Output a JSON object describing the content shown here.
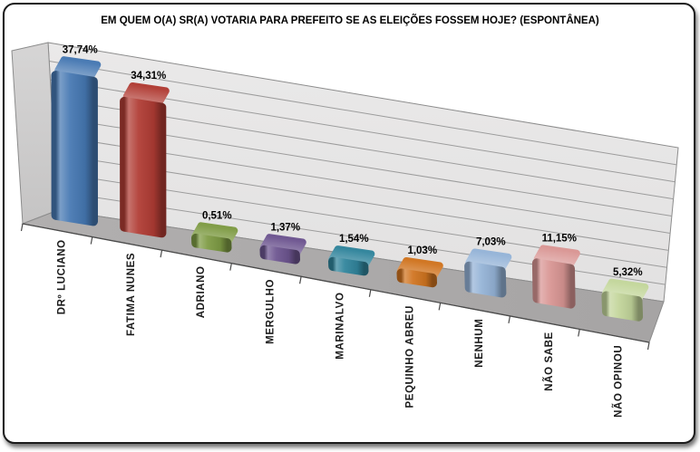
{
  "chart_data": {
    "type": "bar",
    "style": "3d-perspective-rounded-box",
    "title": "EM QUEM O(A) SR(A) VOTARIA PARA PREFEITO SE AS ELEIÇÕES FOSSEM HOJE? (ESPONTÂNEA)",
    "xlabel": "",
    "ylabel": "",
    "ylim": [
      0,
      45
    ],
    "grid": true,
    "legend": null,
    "axis_value_labels_visible": false,
    "value_suffix": "%",
    "categories": [
      "DRº LUCIANO",
      "FATIMA NUNES",
      "ADRIANO",
      "MERGULHO",
      "MARINALVO",
      "PEQUINHO ABREU",
      "NENHUM",
      "NÃO SABE",
      "NÃO OPINOU"
    ],
    "values": [
      37.74,
      34.31,
      0.51,
      1.37,
      1.54,
      1.03,
      7.03,
      11.15,
      5.32
    ],
    "value_labels": [
      "37,74%",
      "34,31%",
      "0,51%",
      "1,37%",
      "1,54%",
      "1,03%",
      "7,03%",
      "11,15%",
      "5,32%"
    ],
    "bar_colors": [
      "#4678B2",
      "#B03C34",
      "#7E9B44",
      "#6D5590",
      "#31859C",
      "#D07420",
      "#95B3D7",
      "#D99694",
      "#C3D69B"
    ],
    "colors": {
      "back_wall": "#E9E8E8",
      "side_wall": "#D2D1D1",
      "floor": "#ADABAB",
      "gridline": "#9C9C9C",
      "wall_edge": "#8C8C8C",
      "front_axis": "#4A4A4A",
      "label_text": "#1A1A1A",
      "card_border": "#1B1B1B"
    }
  }
}
